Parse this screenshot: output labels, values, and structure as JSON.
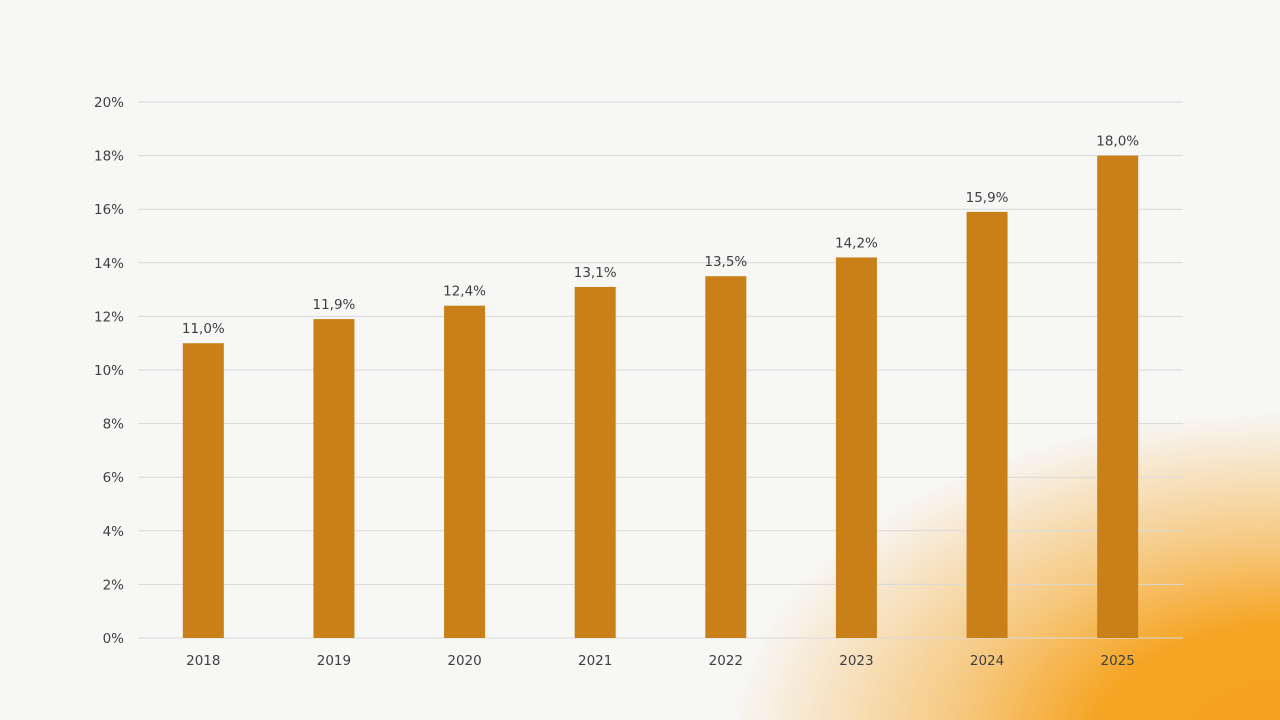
{
  "chart_data": {
    "type": "bar",
    "title": "",
    "xlabel": "",
    "ylabel": "",
    "categories": [
      "2018",
      "2019",
      "2020",
      "2021",
      "2022",
      "2023",
      "2024",
      "2025"
    ],
    "values": [
      11.0,
      11.9,
      12.4,
      13.1,
      13.5,
      14.2,
      15.9,
      18.0
    ],
    "data_labels": [
      "11,0%",
      "11,9%",
      "12,4%",
      "13,1%",
      "13,5%",
      "14,2%",
      "15,9%",
      "18,0%"
    ],
    "ylim": [
      0,
      20
    ],
    "yticks": [
      0,
      2,
      4,
      6,
      8,
      10,
      12,
      14,
      16,
      18,
      20
    ],
    "ytick_labels": [
      "0%",
      "2%",
      "4%",
      "6%",
      "8%",
      "10%",
      "12%",
      "14%",
      "16%",
      "18%",
      "20%"
    ],
    "grid": true,
    "legend": "none",
    "colors": {
      "bar": "#C98018",
      "grid": "#d9d9d9"
    }
  }
}
